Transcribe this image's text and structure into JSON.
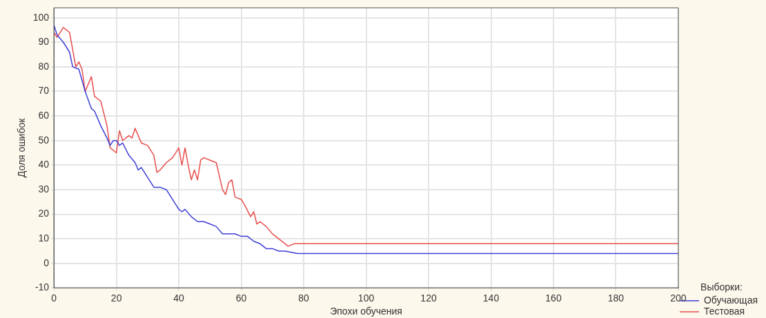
{
  "chart_data": {
    "type": "line",
    "xlabel": "Эпохи обучения",
    "ylabel": "Доля ошибок",
    "legend_title": "Выборки:",
    "legend": "bottom right",
    "grid": true,
    "marker": "none",
    "line_style": "solid",
    "xlim": [
      0,
      200
    ],
    "xticks": [
      0,
      20,
      40,
      60,
      80,
      100,
      120,
      140,
      160,
      180,
      200
    ],
    "ylim": [
      -10,
      104
    ],
    "yticks": [
      -10,
      0,
      10,
      20,
      30,
      40,
      50,
      60,
      70,
      80,
      90,
      100
    ],
    "series": [
      {
        "name": "Обучающая",
        "color": "#3c3cd8",
        "x": [
          0,
          1,
          3,
          5,
          6,
          8,
          10,
          12,
          13,
          15,
          17,
          18,
          19,
          20,
          21,
          22,
          24,
          26,
          27,
          28,
          30,
          32,
          34,
          36,
          38,
          40,
          41,
          42,
          44,
          46,
          48,
          50,
          52,
          54,
          56,
          58,
          60,
          62,
          64,
          66,
          68,
          70,
          72,
          74,
          76,
          78,
          200
        ],
        "values": [
          97,
          93,
          90,
          86,
          80,
          79,
          70,
          63,
          62,
          56,
          51,
          48,
          50,
          50,
          48,
          49,
          44,
          41,
          38,
          39,
          35,
          31,
          31,
          30,
          26,
          22,
          21,
          22,
          19,
          17,
          17,
          16,
          15,
          12,
          12,
          12,
          11,
          11,
          9,
          8,
          6,
          6,
          5,
          5,
          4.5,
          4,
          4
        ]
      },
      {
        "name": "Тестовая",
        "color": "#e84c4c",
        "x": [
          0,
          1,
          3,
          5,
          7,
          8,
          9,
          10,
          12,
          13,
          15,
          17,
          18,
          20,
          21,
          22,
          24,
          25,
          26,
          28,
          30,
          32,
          33,
          34,
          36,
          38,
          40,
          41,
          42,
          43,
          44,
          45,
          46,
          47,
          48,
          50,
          52,
          54,
          55,
          56,
          57,
          58,
          60,
          61,
          63,
          64,
          65,
          66,
          68,
          70,
          72,
          74,
          75,
          77,
          200
        ],
        "values": [
          94,
          92,
          96,
          94,
          80,
          82,
          79,
          70,
          76,
          68,
          66,
          56,
          47,
          45,
          54,
          50,
          52,
          51,
          55,
          49,
          48,
          44,
          37,
          38,
          41,
          43,
          47,
          40,
          47,
          40,
          34,
          38,
          34,
          42,
          43,
          42,
          41,
          30,
          28,
          33,
          34,
          27,
          26,
          24,
          19,
          21,
          16,
          17,
          15,
          12,
          10,
          8,
          7,
          8,
          8
        ]
      }
    ]
  }
}
